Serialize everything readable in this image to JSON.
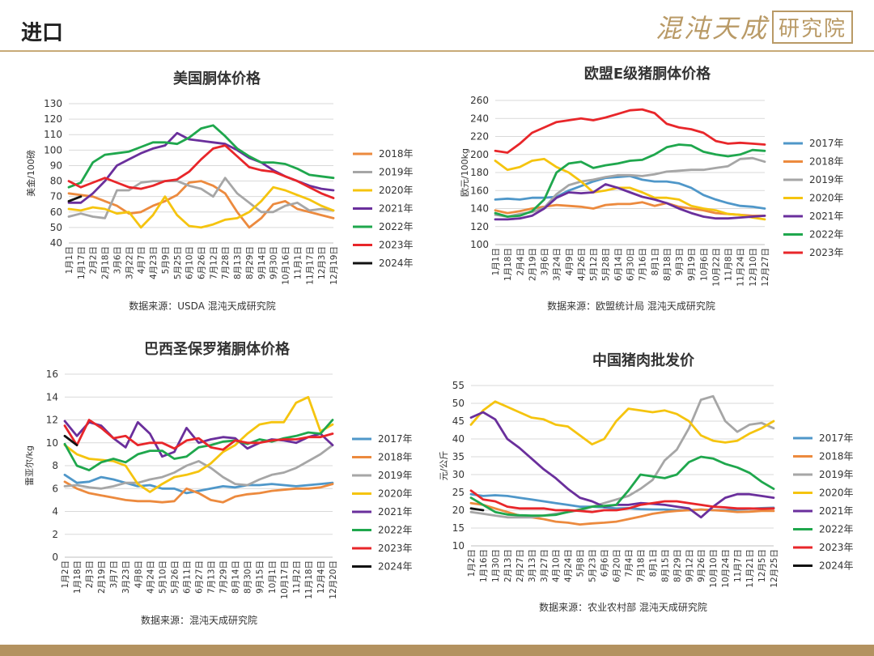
{
  "page": {
    "title": "进口",
    "brand_main": "混沌天成",
    "brand_sub": "研究院"
  },
  "colors": {
    "2017年": "#4f97c9",
    "2018年": "#ec8a3e",
    "2019年": "#a6a6a6",
    "2020年": "#f5c40f",
    "2021年": "#6a2f9c",
    "2022年": "#1fa74d",
    "2023年": "#e8262a",
    "2024年": "#111111"
  },
  "chart_data": [
    {
      "type": "line",
      "title": "美国胴体价格",
      "ylabel": "美金/100磅",
      "xlabel": "",
      "ylim": [
        40,
        130
      ],
      "yticks": [
        40,
        50,
        60,
        70,
        80,
        90,
        100,
        110,
        120,
        130
      ],
      "xticks": [
        "1月1日",
        "1月17日",
        "2月2日",
        "2月18日",
        "3月6日",
        "3月22日",
        "4月7日",
        "4月23日",
        "5月9日",
        "5月25日",
        "6月10日",
        "6月26日",
        "7月12日",
        "7月28日",
        "8月13日",
        "8月29日",
        "9月14日",
        "9月30日",
        "10月16日",
        "11月1日",
        "11月17日",
        "12月3日",
        "12月19日"
      ],
      "grid": true,
      "legend": "right",
      "source": "数据来源：USDA  混沌天成研究院",
      "series": [
        {
          "name": "2018年",
          "values": [
            72,
            71,
            70,
            67,
            64,
            59,
            60,
            64,
            67,
            71,
            79,
            80,
            77,
            72,
            60,
            50,
            56,
            65,
            67,
            62,
            60,
            58,
            56
          ]
        },
        {
          "name": "2019年",
          "values": [
            57,
            59,
            57,
            56,
            74,
            74,
            79,
            80,
            80,
            80,
            77,
            75,
            70,
            82,
            72,
            66,
            60,
            60,
            64,
            66,
            61,
            62,
            61
          ]
        },
        {
          "name": "2020年",
          "values": [
            62,
            61,
            63,
            62,
            59,
            60,
            50,
            58,
            70,
            58,
            51,
            50,
            52,
            55,
            56,
            60,
            67,
            76,
            74,
            71,
            68,
            64,
            61
          ]
        },
        {
          "name": "2021年",
          "values": [
            66,
            66,
            72,
            80,
            90,
            94,
            98,
            101,
            103,
            111,
            107,
            106,
            105,
            104,
            100,
            95,
            92,
            87,
            83,
            80,
            77,
            75,
            74
          ]
        },
        {
          "name": "2022年",
          "values": [
            76,
            79,
            92,
            97,
            98,
            99,
            102,
            105,
            105,
            104,
            108,
            114,
            116,
            109,
            101,
            96,
            92,
            92,
            91,
            88,
            84,
            83,
            82
          ]
        },
        {
          "name": "2023年",
          "values": [
            80,
            76,
            79,
            82,
            79,
            76,
            75,
            77,
            80,
            81,
            86,
            94,
            101,
            103,
            96,
            89,
            87,
            86,
            83,
            80,
            76,
            72,
            69
          ]
        },
        {
          "name": "2024年",
          "values": [
            67,
            70,
            null,
            null,
            null,
            null,
            null,
            null,
            null,
            null,
            null,
            null,
            null,
            null,
            null,
            null,
            null,
            null,
            null,
            null,
            null,
            null,
            null
          ]
        }
      ]
    },
    {
      "type": "line",
      "title": "欧盟E级猪胴体价格",
      "ylabel": "欧元/100kg",
      "xlabel": "",
      "ylim": [
        100,
        260
      ],
      "yticks": [
        100,
        120,
        140,
        160,
        180,
        200,
        220,
        240,
        260
      ],
      "xticks": [
        "1月1日",
        "1月18日",
        "2月4日",
        "2月19日",
        "3月6日",
        "3月24日",
        "4月9日",
        "4月26日",
        "5月12日",
        "5月28日",
        "6月14日",
        "6月30日",
        "7月16日",
        "8月1日",
        "8月18日",
        "9月3日",
        "9月19日",
        "10月6日",
        "10月22日",
        "11月8日",
        "11月24日",
        "12月10日",
        "12月27日"
      ],
      "grid": true,
      "legend": "right",
      "source": "数据来源：欧盟统计局  混沌天成研究院",
      "series": [
        {
          "name": "2017年",
          "values": [
            150,
            151,
            150,
            152,
            152,
            153,
            160,
            165,
            170,
            174,
            175,
            176,
            172,
            170,
            170,
            168,
            163,
            155,
            150,
            146,
            143,
            142,
            140
          ]
        },
        {
          "name": "2018年",
          "values": [
            138,
            135,
            137,
            140,
            142,
            144,
            143,
            142,
            140,
            144,
            145,
            145,
            147,
            143,
            146,
            142,
            140,
            138,
            135,
            134,
            133,
            132,
            132
          ]
        },
        {
          "name": "2019年",
          "values": [
            133,
            131,
            134,
            136,
            141,
            156,
            166,
            170,
            172,
            175,
            177,
            177,
            176,
            178,
            181,
            182,
            183,
            183,
            185,
            187,
            195,
            196,
            192
          ]
        },
        {
          "name": "2020年",
          "values": [
            193,
            183,
            186,
            193,
            195,
            186,
            180,
            170,
            158,
            160,
            163,
            163,
            158,
            152,
            152,
            150,
            143,
            140,
            138,
            134,
            133,
            130,
            128
          ]
        },
        {
          "name": "2021年",
          "values": [
            128,
            128,
            129,
            132,
            140,
            152,
            158,
            157,
            158,
            167,
            163,
            158,
            153,
            150,
            146,
            140,
            135,
            131,
            129,
            129,
            130,
            131,
            132
          ]
        },
        {
          "name": "2022年",
          "values": [
            135,
            131,
            132,
            137,
            150,
            180,
            190,
            192,
            185,
            188,
            190,
            193,
            194,
            200,
            208,
            211,
            210,
            203,
            200,
            198,
            200,
            205,
            204
          ]
        },
        {
          "name": "2023年",
          "values": [
            204,
            202,
            212,
            224,
            230,
            236,
            238,
            240,
            238,
            241,
            245,
            249,
            250,
            246,
            234,
            230,
            228,
            224,
            215,
            212,
            213,
            212,
            211
          ]
        }
      ]
    },
    {
      "type": "line",
      "title": "巴西圣保罗猪胴体价格",
      "ylabel": "雷亚尔/kg",
      "xlabel": "",
      "ylim": [
        0,
        16
      ],
      "yticks": [
        0,
        2,
        4,
        6,
        8,
        10,
        12,
        14,
        16
      ],
      "xticks": [
        "1月2日",
        "1月18日",
        "2月3日",
        "2月19日",
        "3月7日",
        "3月23日",
        "4月8日",
        "4月24日",
        "5月10日",
        "5月26日",
        "6月11日",
        "6月27日",
        "7月13日",
        "7月29日",
        "8月14日",
        "8月30日",
        "9月15日",
        "10月1日",
        "10月17日",
        "11月2日",
        "11月18日",
        "12月4日",
        "12月20日"
      ],
      "grid": true,
      "legend": "right",
      "source": "数据来源：混沌天成研究院",
      "series": [
        {
          "name": "2017年",
          "values": [
            7.2,
            6.5,
            6.6,
            7.0,
            6.8,
            6.5,
            6.2,
            6.3,
            6.0,
            6.0,
            5.6,
            5.8,
            6.0,
            6.2,
            6.1,
            6.3,
            6.3,
            6.4,
            6.3,
            6.2,
            6.3,
            6.4,
            6.5
          ]
        },
        {
          "name": "2018年",
          "values": [
            6.6,
            6.0,
            5.6,
            5.4,
            5.2,
            5.0,
            4.9,
            4.9,
            4.8,
            4.9,
            6.0,
            5.6,
            5.0,
            4.8,
            5.3,
            5.5,
            5.6,
            5.8,
            5.9,
            6.0,
            6.0,
            6.1,
            6.4
          ]
        },
        {
          "name": "2019年",
          "values": [
            6.2,
            6.3,
            6.1,
            6.0,
            6.2,
            6.5,
            6.5,
            6.8,
            7.0,
            7.4,
            8.0,
            8.4,
            7.8,
            7.0,
            6.4,
            6.3,
            6.8,
            7.2,
            7.4,
            7.8,
            8.4,
            9.0,
            9.8
          ]
        },
        {
          "name": "2020年",
          "values": [
            9.8,
            9.0,
            8.6,
            8.5,
            8.4,
            8.0,
            6.4,
            5.7,
            6.4,
            7.0,
            7.2,
            7.5,
            8.2,
            9.2,
            9.8,
            10.8,
            11.6,
            11.8,
            11.8,
            13.5,
            14.0,
            11.0,
            11.6
          ]
        },
        {
          "name": "2021年",
          "values": [
            11.9,
            10.6,
            11.8,
            11.5,
            10.4,
            9.6,
            11.8,
            10.8,
            8.8,
            9.2,
            11.3,
            10.0,
            10.3,
            10.5,
            10.4,
            9.5,
            10.0,
            10.3,
            10.2,
            10.0,
            10.5,
            10.8,
            9.8
          ]
        },
        {
          "name": "2022年",
          "values": [
            9.9,
            8.0,
            7.6,
            8.3,
            8.6,
            8.3,
            9.0,
            9.3,
            9.3,
            8.6,
            8.8,
            9.6,
            9.8,
            10.1,
            10.2,
            9.9,
            10.3,
            10.1,
            10.4,
            10.6,
            10.9,
            10.8,
            12.0
          ]
        },
        {
          "name": "2023年",
          "values": [
            11.5,
            9.8,
            12.0,
            11.3,
            10.4,
            10.6,
            9.8,
            10.0,
            10.0,
            9.5,
            10.2,
            10.4,
            9.6,
            9.4,
            10.2,
            10.0,
            10.0,
            10.2,
            10.3,
            10.3,
            10.5,
            10.5,
            10.8
          ]
        },
        {
          "name": "2024年",
          "values": [
            10.6,
            9.8,
            null,
            null,
            null,
            null,
            null,
            null,
            null,
            null,
            null,
            null,
            null,
            null,
            null,
            null,
            null,
            null,
            null,
            null,
            null,
            null,
            null
          ]
        }
      ]
    },
    {
      "type": "line",
      "title": "中国猪肉批发价",
      "ylabel": "元/公斤",
      "xlabel": "",
      "ylim": [
        10,
        55
      ],
      "yticks": [
        10,
        15,
        20,
        25,
        30,
        35,
        40,
        45,
        50,
        55
      ],
      "xticks": [
        "1月2日",
        "1月16日",
        "1月30日",
        "2月13日",
        "2月27日",
        "3月13日",
        "3月27日",
        "4月10日",
        "4月24日",
        "5月8日",
        "5月23日",
        "6月6日",
        "6月20日",
        "7月4日",
        "7月18日",
        "8月1日",
        "8月15日",
        "8月29日",
        "9月12日",
        "9月26日",
        "10月10日",
        "10月24日",
        "11月7日",
        "11月21日",
        "12月5日",
        "12月25日"
      ],
      "grid": true,
      "legend": "right",
      "source": "数据来源：农业农村部  混沌天成研究院",
      "series": [
        {
          "name": "2017年",
          "values": [
            24.5,
            24.0,
            24.2,
            24.0,
            23.5,
            23.0,
            22.5,
            22.0,
            21.5,
            21.0,
            21.0,
            20.8,
            20.5,
            20.6,
            20.3,
            20.2,
            20.2,
            20.0,
            20.0,
            20.2,
            20.0,
            20.0,
            20.2,
            20.4,
            20.6,
            20.7
          ]
        },
        {
          "name": "2018年",
          "values": [
            22.0,
            21.5,
            20.5,
            19.5,
            18.5,
            18.0,
            17.5,
            16.8,
            16.5,
            16.0,
            16.3,
            16.5,
            16.8,
            17.5,
            18.2,
            19.0,
            19.5,
            19.8,
            20.0,
            20.2,
            20.0,
            19.8,
            19.5,
            19.6,
            19.8,
            19.8
          ]
        },
        {
          "name": "2019年",
          "values": [
            19.5,
            19.0,
            18.5,
            18.0,
            18.0,
            18.0,
            18.5,
            19.0,
            19.5,
            20.0,
            21.0,
            22.0,
            23.0,
            24.0,
            26.0,
            28.5,
            34.0,
            37.0,
            43.0,
            51.0,
            52.0,
            45.0,
            42.0,
            44.0,
            44.5,
            43.0
          ]
        },
        {
          "name": "2020年",
          "values": [
            44.0,
            48.0,
            50.5,
            49.0,
            47.5,
            46.0,
            45.5,
            44.0,
            43.5,
            41.0,
            38.5,
            40.0,
            45.0,
            48.5,
            48.0,
            47.5,
            48.0,
            47.0,
            45.0,
            41.0,
            39.5,
            39.0,
            39.5,
            41.5,
            43.0,
            45.0
          ]
        },
        {
          "name": "2021年",
          "values": [
            46.0,
            47.5,
            45.5,
            40.0,
            37.5,
            34.5,
            31.5,
            29.0,
            26.0,
            23.5,
            22.5,
            21.0,
            21.5,
            21.5,
            22.0,
            21.8,
            21.5,
            21.0,
            20.5,
            18.0,
            21.0,
            23.5,
            24.5,
            24.5,
            24.0,
            23.5
          ]
        },
        {
          "name": "2022年",
          "values": [
            23.5,
            21.5,
            19.5,
            18.8,
            18.6,
            18.5,
            18.5,
            18.7,
            19.5,
            20.2,
            21.0,
            21.2,
            21.5,
            25.5,
            30.0,
            29.5,
            29.0,
            30.0,
            33.5,
            35.0,
            34.5,
            33.0,
            32.0,
            30.5,
            28.0,
            26.0
          ]
        },
        {
          "name": "2023年",
          "values": [
            25.5,
            23.0,
            22.5,
            21.0,
            20.5,
            20.5,
            20.5,
            20.0,
            20.0,
            19.8,
            19.5,
            20.0,
            20.0,
            20.5,
            21.5,
            22.0,
            22.5,
            22.5,
            22.0,
            21.5,
            21.0,
            20.8,
            20.5,
            20.5,
            20.4,
            20.5
          ]
        },
        {
          "name": "2024年",
          "values": [
            20.5,
            20.0,
            null,
            null,
            null,
            null,
            null,
            null,
            null,
            null,
            null,
            null,
            null,
            null,
            null,
            null,
            null,
            null,
            null,
            null,
            null,
            null,
            null,
            null,
            null,
            null
          ]
        }
      ]
    }
  ]
}
